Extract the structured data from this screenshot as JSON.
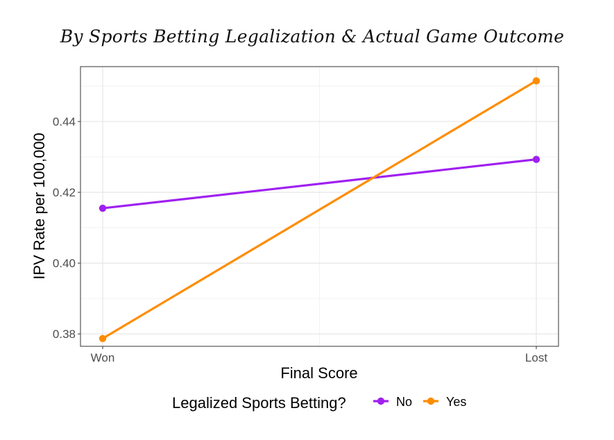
{
  "chart_data": {
    "type": "line",
    "title": "By Sports Betting Legalization & Actual Game Outcome",
    "xlabel": "Final Score",
    "ylabel": "IPV Rate per 100,000",
    "categories": [
      "Won",
      "Lost"
    ],
    "ylim": [
      0.3765,
      0.4555
    ],
    "yticks": [
      0.38,
      0.4,
      0.42,
      0.44
    ],
    "ytick_labels": [
      "0.38",
      "0.40",
      "0.42",
      "0.44"
    ],
    "grid": true,
    "legend_position": "bottom",
    "legend_title": "Legalized Sports Betting?",
    "series": [
      {
        "name": "No",
        "color": "#a020f0",
        "values": [
          0.4155,
          0.4293
        ]
      },
      {
        "name": "Yes",
        "color": "#ff8c00",
        "values": [
          0.3787,
          0.4515
        ]
      }
    ]
  }
}
